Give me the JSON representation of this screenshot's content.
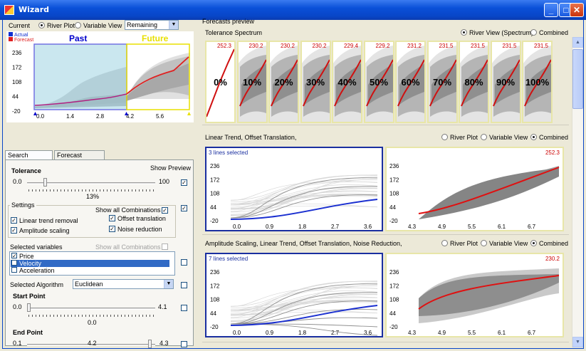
{
  "window": {
    "title": "Wizard",
    "min": "_",
    "max": "□",
    "close": "✕"
  },
  "top": {
    "current_label": "Current",
    "river_plot": "River Plot",
    "variable_view": "Variable View",
    "dropdown_value": "Remaining"
  },
  "overview": {
    "legend_actual": "Actual",
    "legend_forecast": "Forecast",
    "past_label": "Past",
    "future_label": "Future",
    "y_ticks": [
      "236",
      "172",
      "108",
      "44",
      "-20"
    ],
    "x_ticks": [
      "0.0",
      "1.4",
      "2.8",
      "4.2",
      "5.6"
    ],
    "colors": {
      "past": "#0000cc",
      "future": "#e8e000",
      "actual": "#1030d0",
      "forecast": "#e02020"
    }
  },
  "tabs": {
    "search": "Search settings",
    "source": "Forecast Source"
  },
  "search": {
    "tolerance_label": "Tolerance",
    "show_preview": "Show Preview",
    "tol_min": "0.0",
    "tol_max": "100",
    "tol_value": "13%",
    "tolerance_fraction": 0.13,
    "settings_legend": "Settings",
    "show_all_combinations": "Show all Combinations",
    "linear_trend": "Linear trend removal",
    "offset_translation": "Offset translation",
    "amplitude_scaling": "Amplitude scaling",
    "noise_reduction": "Noise reduction",
    "selected_variables_legend": "Selected variables",
    "show_all_combinations_2": "Show all Combinations",
    "variables": [
      "Price",
      "Velocity",
      "Acceleration"
    ],
    "selected_algorithm_label": "Selected Algorithm",
    "algorithm_value": "Euclidean",
    "start_point_label": "Start Point",
    "start_min": "0.0",
    "start_max": "4.1",
    "start_value": "0.0",
    "start_fraction": 0.0,
    "end_point_label": "End Point",
    "end_min": "0.1",
    "end_max": "4.3",
    "end_value": "4.2",
    "end_fraction": 0.97
  },
  "preview": {
    "header": "Forecasts preview",
    "tolerance_spectrum": "Tolerance Spectrum",
    "river_view_spectrum": "River View (Spectrum)",
    "combined": "Combined",
    "spectrum": [
      {
        "pct": "0%",
        "value": "252.3"
      },
      {
        "pct": "10%",
        "value": "230.2"
      },
      {
        "pct": "20%",
        "value": "230.2"
      },
      {
        "pct": "30%",
        "value": "230.2"
      },
      {
        "pct": "40%",
        "value": "229.4"
      },
      {
        "pct": "50%",
        "value": "229.2"
      },
      {
        "pct": "60%",
        "value": "231.2"
      },
      {
        "pct": "70%",
        "value": "231.5"
      },
      {
        "pct": "80%",
        "value": "231.5"
      },
      {
        "pct": "90%",
        "value": "231.5"
      },
      {
        "pct": "100%",
        "value": "231.5"
      }
    ]
  },
  "section1": {
    "title": "Linear Trend, Offset Translation,",
    "river_plot": "River Plot",
    "variable_view": "Variable View",
    "combined": "Combined",
    "lines_selected": "3 lines selected",
    "value": "252.3",
    "left_y": [
      "236",
      "172",
      "108",
      "44",
      "-20"
    ],
    "left_x": [
      "0.0",
      "0.9",
      "1.8",
      "2.7",
      "3.6"
    ],
    "right_y": [
      "236",
      "172",
      "108",
      "44",
      "-20"
    ],
    "right_x": [
      "4.3",
      "4.9",
      "5.5",
      "6.1",
      "6.7"
    ]
  },
  "section2": {
    "title": "Amplitude Scaling, Linear Trend, Offset Translation, Noise Reduction,",
    "river_plot": "River Plot",
    "variable_view": "Variable View",
    "combined": "Combined",
    "lines_selected": "7 lines selected",
    "value": "230.2",
    "left_y": [
      "236",
      "172",
      "108",
      "44",
      "-20"
    ],
    "left_x": [
      "0.0",
      "0.9",
      "1.8",
      "2.7",
      "3.6"
    ],
    "right_y": [
      "236",
      "172",
      "108",
      "44",
      "-20"
    ],
    "right_x": [
      "4.3",
      "4.9",
      "5.5",
      "6.1",
      "6.7"
    ]
  }
}
